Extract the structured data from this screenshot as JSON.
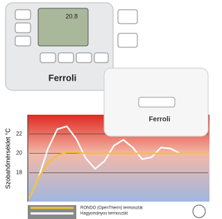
{
  "chart_data": {
    "type": "line",
    "y_label": "Szobahőmérséklet °C",
    "categories": [
      null,
      null,
      null,
      null,
      null,
      null,
      null,
      null,
      null,
      null,
      null,
      null,
      null,
      null,
      null,
      null,
      null,
      null,
      null,
      null
    ],
    "series": [
      {
        "name": "RONDO (OpenTherm) termosztát",
        "color": "#f2c230",
        "values": [
          15.3,
          17.5,
          19.0,
          19.8,
          20.1,
          20.1,
          20,
          20,
          20,
          20,
          20,
          20,
          20,
          20,
          20,
          20,
          20,
          20,
          20,
          20
        ]
      },
      {
        "name": "Hagyományos termosztát",
        "color": "#ffffff",
        "values": [
          15.3,
          17.5,
          20.5,
          22.5,
          22.8,
          21.5,
          19.5,
          18.4,
          19.2,
          20.8,
          21.4,
          20.6,
          19.4,
          19.6,
          20.6,
          20.5,
          20,
          20,
          20,
          20
        ]
      }
    ],
    "ylim": [
      15,
      24
    ],
    "yticks": [
      18,
      20,
      22
    ],
    "grid": true
  },
  "devices": {
    "display": "20.8",
    "thermostat_brand": "Ferroli",
    "receiver_brand": "Ferroli"
  }
}
